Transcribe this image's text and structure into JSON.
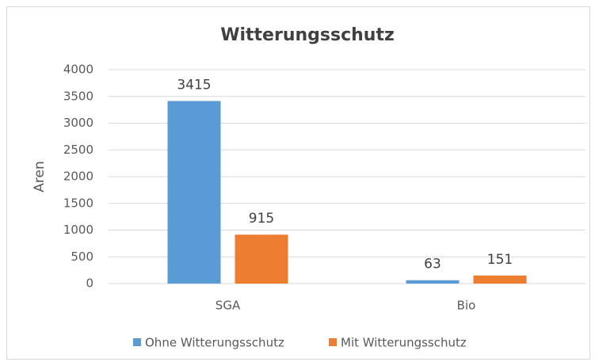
{
  "chart_data": {
    "type": "bar",
    "title": "Witterungsschutz",
    "y_label": "Aren",
    "categories": [
      "SGA",
      "Bio"
    ],
    "series": [
      {
        "name": "Ohne Witterungsschutz",
        "color": "#5b9bd5",
        "values": [
          3415,
          63
        ]
      },
      {
        "name": "Mit Witterungsschutz",
        "color": "#ed7d31",
        "values": [
          915,
          151
        ]
      }
    ],
    "ylim": [
      0,
      4000
    ],
    "yticks": [
      0,
      500,
      1000,
      1500,
      2000,
      2500,
      3000,
      3500,
      4000
    ],
    "grid": true,
    "legend": "bottom"
  }
}
